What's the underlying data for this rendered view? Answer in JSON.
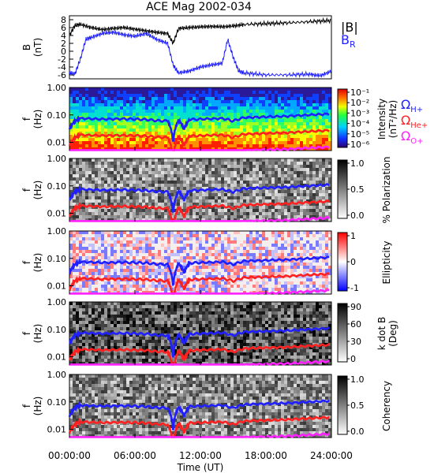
{
  "title": "ACE Mag 2002-034",
  "x_axis": {
    "label": "Time (UT)",
    "ticks": [
      "00:00:00",
      "06:00:00",
      "12:00:00",
      "18:00:00",
      "24:00:00"
    ],
    "range_hours": [
      0,
      24
    ]
  },
  "legend_top": {
    "b_total": "|B|",
    "b_r": "B",
    "b_r_sub": "R"
  },
  "legend_gyro": [
    {
      "sym": "Ω",
      "sub": "H+",
      "color": "#1f1fff"
    },
    {
      "sym": "Ω",
      "sub": "He+",
      "color": "#ff2020"
    },
    {
      "sym": "Ω",
      "sub": "O+",
      "color": "#ff20ff"
    }
  ],
  "colors": {
    "btotal": "#000000",
    "br": "#1f1fff",
    "h_plus": "#1f1fff",
    "he_plus": "#ff2020",
    "o_plus": "#ff20ff"
  },
  "chart_data": [
    {
      "type": "line",
      "panel": "magnetic-field",
      "ylabel": "B",
      "yunit": "(nT)",
      "ylim": [
        -7,
        9
      ],
      "yticks": [
        "-6",
        "-4",
        "-2",
        "0",
        "2",
        "4",
        "6",
        "8"
      ],
      "series": [
        {
          "name": "|B|",
          "x": [
            0,
            0.5,
            1,
            2,
            3,
            4,
            5,
            6,
            7,
            8,
            9,
            9.5,
            10,
            11,
            12,
            13,
            14,
            15,
            16,
            18,
            20,
            22,
            24
          ],
          "y": [
            4,
            6.5,
            6.8,
            6.0,
            5.5,
            5.8,
            6.0,
            5.6,
            5.2,
            4.8,
            4.5,
            2.0,
            5.8,
            6.0,
            6.2,
            6.3,
            6.2,
            6.4,
            6.8,
            7.0,
            7.2,
            7.5,
            7.8
          ]
        },
        {
          "name": "B",
          "x": [
            0,
            0.5,
            1,
            1.5,
            2,
            3,
            4,
            5,
            6,
            7,
            8,
            9,
            9.5,
            10,
            11,
            12,
            13,
            14,
            14.5,
            15,
            15.5,
            16,
            18,
            20,
            22,
            23,
            24
          ],
          "y": [
            -5.5,
            -5.8,
            -2.0,
            3.0,
            3.5,
            4.5,
            4.8,
            4.2,
            3.8,
            4.5,
            3.0,
            2.0,
            -3.5,
            -5.5,
            -5.0,
            -4.0,
            -3.5,
            -3.0,
            3.0,
            -1.5,
            -5.0,
            -5.5,
            -6.0,
            -6.0,
            -5.8,
            -6.2,
            -5.0
          ]
        }
      ]
    },
    {
      "type": "heatmap",
      "panel": "intensity",
      "ylabel": "f",
      "yunit": "(Hz)",
      "yticks": [
        "1.00",
        "0.10",
        "0.01"
      ],
      "colorbar": {
        "label": "Intensity",
        "unit": "(nT²/Hz)",
        "ticks": [
          "10⁻¹",
          "10⁻²",
          "10⁻³",
          "10⁻⁴",
          "10⁻⁵",
          "10⁻⁶"
        ]
      }
    },
    {
      "type": "heatmap",
      "panel": "polarization",
      "ylabel": "f",
      "yunit": "(Hz)",
      "yticks": [
        "1.00",
        "0.10",
        "0.01"
      ],
      "colorbar": {
        "label": "% Polarization",
        "unit": "",
        "ticks": [
          "1.0",
          "0.5",
          "0.0"
        ]
      }
    },
    {
      "type": "heatmap",
      "panel": "ellipticity",
      "ylabel": "f",
      "yunit": "(Hz)",
      "yticks": [
        "1.00",
        "0.10",
        "0.01"
      ],
      "colorbar": {
        "label": "Ellipticity",
        "unit": "",
        "ticks": [
          "1",
          "0",
          "-1"
        ]
      }
    },
    {
      "type": "heatmap",
      "panel": "k-dot-b",
      "ylabel": "f",
      "yunit": "(Hz)",
      "yticks": [
        "1.00",
        "0.10",
        "0.01"
      ],
      "colorbar": {
        "label": "k dot B",
        "unit": "(Deg)",
        "ticks": [
          "90",
          "60",
          "30",
          "0"
        ]
      }
    },
    {
      "type": "heatmap",
      "panel": "coherency",
      "ylabel": "f",
      "yunit": "(Hz)",
      "yticks": [
        "1.00",
        "0.10",
        "0.01"
      ],
      "colorbar": {
        "label": "Coherency",
        "unit": "",
        "ticks": [
          "1.0",
          "0.5",
          "0.0"
        ]
      }
    }
  ],
  "gyro_lines": {
    "x": [
      0,
      0.5,
      1,
      3,
      5,
      6,
      7,
      8,
      9,
      9.5,
      10,
      10.5,
      11,
      12,
      14,
      15,
      16,
      18,
      20,
      22,
      24
    ],
    "h_plus_hz": [
      0.03,
      0.06,
      0.075,
      0.07,
      0.072,
      0.07,
      0.068,
      0.062,
      0.06,
      0.01,
      0.065,
      0.03,
      0.068,
      0.07,
      0.075,
      0.06,
      0.08,
      0.085,
      0.09,
      0.1,
      0.11
    ]
  }
}
